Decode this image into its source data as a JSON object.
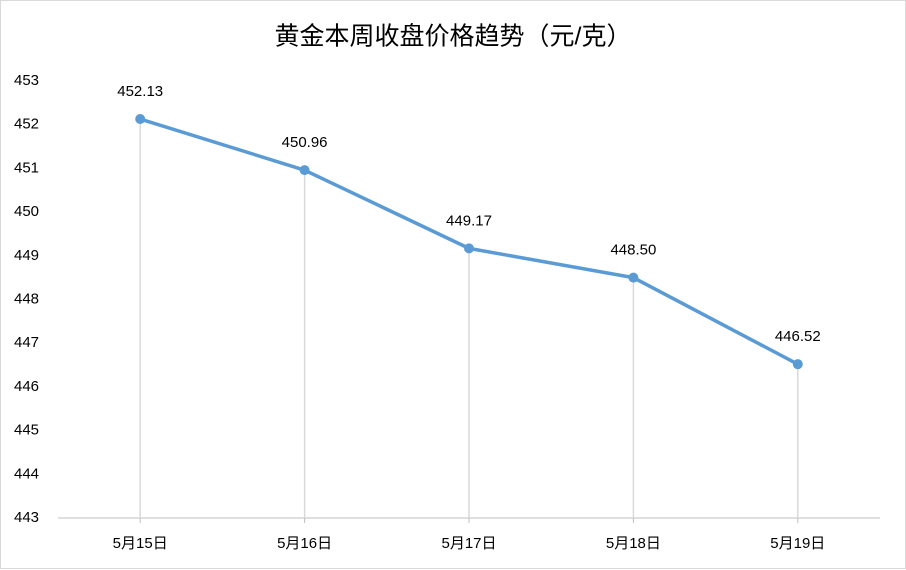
{
  "chart_data": {
    "type": "line",
    "title": "黄金本周收盘价格趋势（元/克）",
    "categories": [
      "5月15日",
      "5月16日",
      "5月17日",
      "5月18日",
      "5月19日"
    ],
    "values": [
      452.13,
      450.96,
      449.17,
      448.5,
      446.52
    ],
    "value_labels": [
      "452.13",
      "450.96",
      "449.17",
      "448.50",
      "446.52"
    ],
    "color": "#5b9bd5",
    "ylim": [
      443,
      453
    ],
    "yticks": [
      443,
      444,
      445,
      446,
      447,
      448,
      449,
      450,
      451,
      452,
      453
    ],
    "grid": false,
    "drop_lines": true
  }
}
